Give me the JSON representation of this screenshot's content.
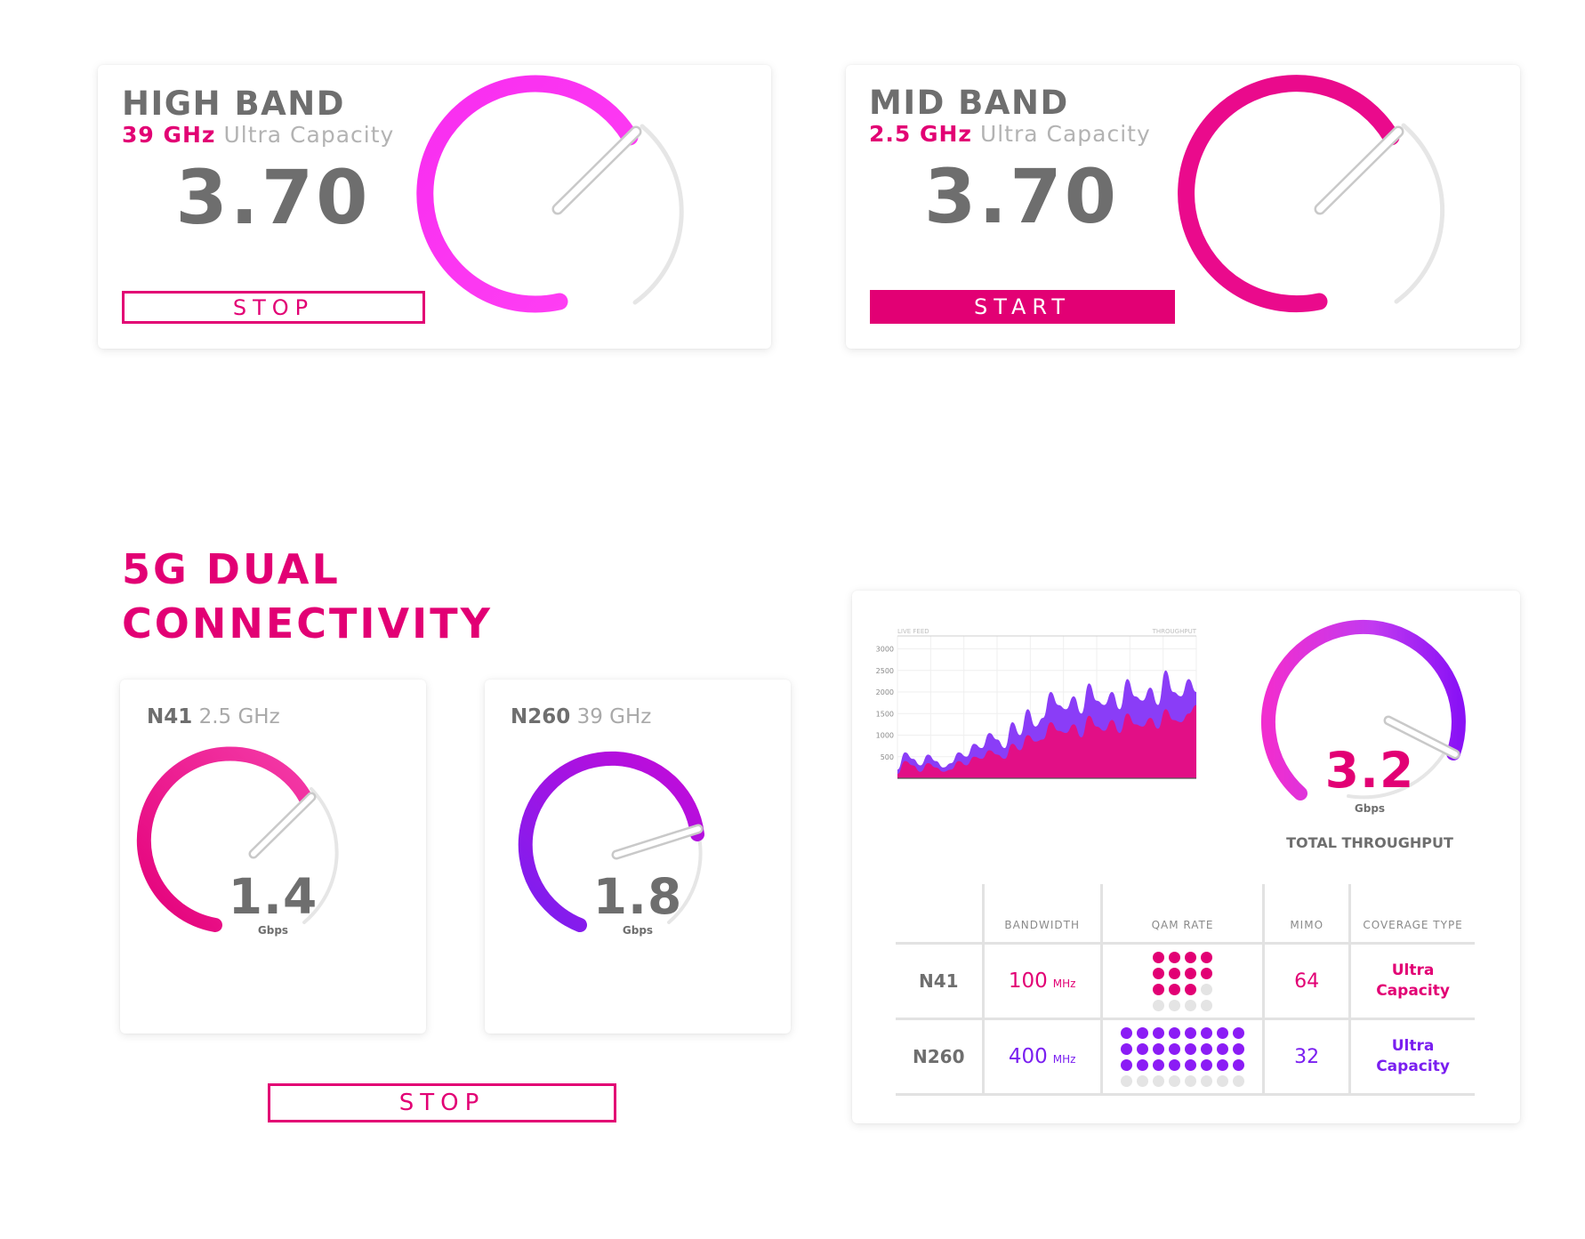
{
  "colors": {
    "magenta": "#e20074",
    "pink": "#ff3df4",
    "purple": "#8b1cf5",
    "violet": "#b20ee0",
    "track": "#e6e6e6",
    "text": "#6e6e6e"
  },
  "high_band": {
    "title": "HIGH BAND",
    "freq": "39 GHz",
    "desc": "Ultra Capacity",
    "value": "3.70",
    "button_label": "STOP"
  },
  "mid_band": {
    "title": "MID BAND",
    "freq": "2.5 GHz",
    "desc": "Ultra Capacity",
    "value": "3.70",
    "button_label": "START"
  },
  "dual": {
    "title_line1": "5G DUAL",
    "title_line2": "CONNECTIVITY",
    "n41": {
      "name": "N41",
      "freq": "2.5 GHz",
      "value": "1.4",
      "unit": "Gbps"
    },
    "n260": {
      "name": "N260",
      "freq": "39 GHz",
      "value": "1.8",
      "unit": "Gbps"
    },
    "button_label": "STOP"
  },
  "throughput": {
    "value": "3.2",
    "unit": "Gbps",
    "label": "TOTAL THROUGHPUT",
    "chart_data": {
      "type": "area",
      "label_left": "LIVE FEED",
      "label_right": "THROUGHPUT",
      "y_ticks": [
        "3000",
        "2500",
        "2000",
        "1500",
        "1000",
        "500"
      ],
      "ylim": [
        0,
        3300
      ],
      "series": [
        {
          "values": [
            200,
            600,
            450,
            300,
            550,
            400,
            250,
            350,
            600,
            500,
            800,
            700,
            1050,
            900,
            700,
            1300,
            1000,
            1600,
            1200,
            1400,
            2000,
            1700,
            1600,
            1900,
            1500,
            2200,
            1800,
            1700,
            2000,
            1600,
            2300,
            1900,
            1800,
            2100,
            1700,
            2500,
            2000,
            1900,
            2300,
            2000
          ]
        },
        {
          "values": [
            100,
            400,
            300,
            150,
            350,
            250,
            150,
            200,
            400,
            300,
            500,
            450,
            650,
            550,
            450,
            800,
            650,
            1000,
            850,
            900,
            1300,
            1100,
            1050,
            1250,
            950,
            1450,
            1200,
            1100,
            1350,
            1050,
            1500,
            1250,
            1200,
            1400,
            1150,
            1600,
            1350,
            1300,
            1500,
            1700
          ]
        }
      ]
    }
  },
  "table": {
    "headers": [
      "BANDWIDTH",
      "QAM RATE",
      "MIMO",
      "COVERAGE TYPE"
    ],
    "rows": [
      {
        "name": "N41",
        "bandwidth": "100",
        "bandwidth_unit": "MHz",
        "qam_filled": 11,
        "qam_total": 16,
        "mimo": "64",
        "coverage_line1": "Ultra",
        "coverage_line2": "Capacity"
      },
      {
        "name": "N260",
        "bandwidth": "400",
        "bandwidth_unit": "MHz",
        "qam_filled": 24,
        "qam_total": 32,
        "mimo": "32",
        "coverage_line1": "Ultra",
        "coverage_line2": "Capacity"
      }
    ]
  }
}
